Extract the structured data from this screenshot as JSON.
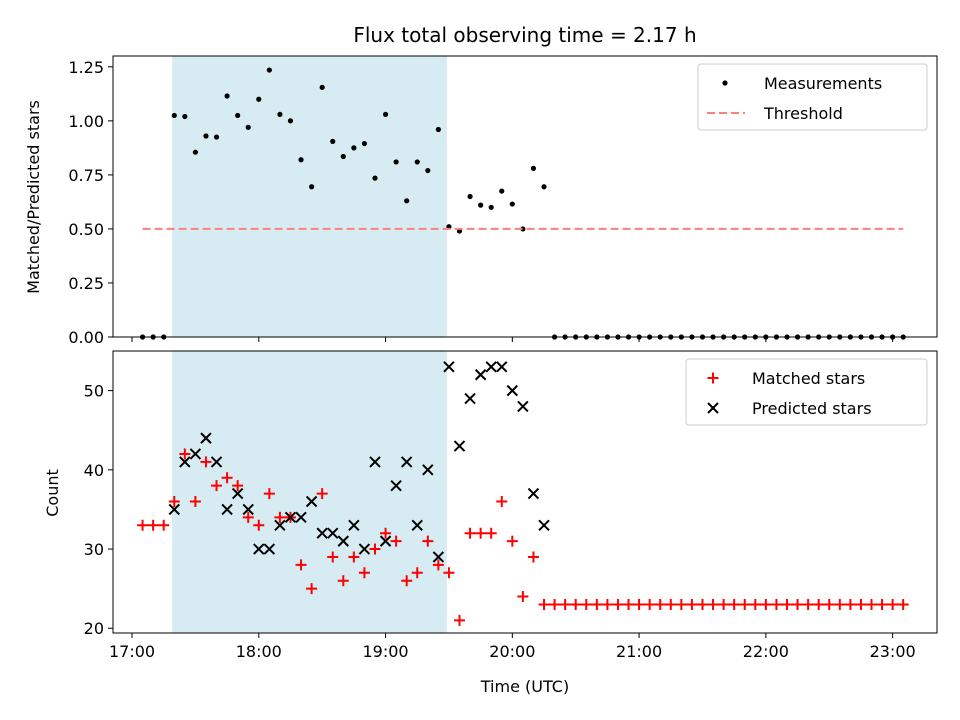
{
  "chart_data": [
    {
      "type": "scatter",
      "title": "Flux total observing time = 2.17 h",
      "xlabel": "",
      "ylabel": "Matched/Predicted stars",
      "xlim": [
        "16:51",
        "23:21"
      ],
      "ylim": [
        0,
        1.3
      ],
      "yticks": [
        "0.00",
        "0.25",
        "0.50",
        "0.75",
        "1.00",
        "1.25"
      ],
      "shaded_span": [
        "17:19",
        "19:29"
      ],
      "shade_color": "#add8e6",
      "legend_position": "top-right",
      "series": [
        {
          "name": "Measurements",
          "marker": "dot",
          "color": "#000000",
          "points": [
            [
              "17:05",
              0
            ],
            [
              "17:10",
              0
            ],
            [
              "17:15",
              0
            ],
            [
              "17:20",
              1.025
            ],
            [
              "17:25",
              1.02
            ],
            [
              "17:30",
              0.855
            ],
            [
              "17:35",
              0.93
            ],
            [
              "17:40",
              0.925
            ],
            [
              "17:45",
              1.115
            ],
            [
              "17:50",
              1.025
            ],
            [
              "17:55",
              0.97
            ],
            [
              "18:00",
              1.1
            ],
            [
              "18:05",
              1.235
            ],
            [
              "18:10",
              1.03
            ],
            [
              "18:15",
              1.0
            ],
            [
              "18:20",
              0.82
            ],
            [
              "18:25",
              0.695
            ],
            [
              "18:30",
              1.155
            ],
            [
              "18:35",
              0.905
            ],
            [
              "18:40",
              0.835
            ],
            [
              "18:45",
              0.875
            ],
            [
              "18:50",
              0.895
            ],
            [
              "18:55",
              0.735
            ],
            [
              "19:00",
              1.03
            ],
            [
              "19:05",
              0.81
            ],
            [
              "19:10",
              0.63
            ],
            [
              "19:15",
              0.81
            ],
            [
              "19:20",
              0.77
            ],
            [
              "19:25",
              0.96
            ],
            [
              "19:30",
              0.51
            ],
            [
              "19:35",
              0.49
            ],
            [
              "19:40",
              0.65
            ],
            [
              "19:45",
              0.61
            ],
            [
              "19:50",
              0.6
            ],
            [
              "19:55",
              0.675
            ],
            [
              "20:00",
              0.615
            ],
            [
              "20:05",
              0.5
            ],
            [
              "20:10",
              0.78
            ],
            [
              "20:15",
              0.695
            ],
            [
              "20:20",
              0
            ],
            [
              "20:25",
              0
            ],
            [
              "20:30",
              0
            ],
            [
              "20:35",
              0
            ],
            [
              "20:40",
              0
            ],
            [
              "20:45",
              0
            ],
            [
              "20:50",
              0
            ],
            [
              "20:55",
              0
            ],
            [
              "21:00",
              0
            ],
            [
              "21:05",
              0
            ],
            [
              "21:10",
              0
            ],
            [
              "21:15",
              0
            ],
            [
              "21:20",
              0
            ],
            [
              "21:25",
              0
            ],
            [
              "21:30",
              0
            ],
            [
              "21:35",
              0
            ],
            [
              "21:40",
              0
            ],
            [
              "21:45",
              0
            ],
            [
              "21:50",
              0
            ],
            [
              "21:55",
              0
            ],
            [
              "22:00",
              0
            ],
            [
              "22:05",
              0
            ],
            [
              "22:10",
              0
            ],
            [
              "22:15",
              0
            ],
            [
              "22:20",
              0
            ],
            [
              "22:25",
              0
            ],
            [
              "22:30",
              0
            ],
            [
              "22:35",
              0
            ],
            [
              "22:40",
              0
            ],
            [
              "22:45",
              0
            ],
            [
              "22:50",
              0
            ],
            [
              "22:55",
              0
            ],
            [
              "23:00",
              0
            ],
            [
              "23:05",
              0
            ]
          ]
        },
        {
          "name": "Threshold",
          "marker": "dashed-line",
          "color": "#ff7f7f",
          "points": [
            [
              "17:05",
              0.5
            ],
            [
              "23:05",
              0.5
            ]
          ]
        }
      ]
    },
    {
      "type": "scatter",
      "title": "",
      "xlabel": "Time (UTC)",
      "ylabel": "Count",
      "xlim": [
        "16:51",
        "23:21"
      ],
      "ylim": [
        19.4,
        55
      ],
      "yticks": [
        "20",
        "30",
        "40",
        "50"
      ],
      "xticks": [
        "17:00",
        "18:00",
        "19:00",
        "20:00",
        "21:00",
        "22:00",
        "23:00"
      ],
      "shaded_span": [
        "17:19",
        "19:29"
      ],
      "shade_color": "#add8e6",
      "legend_position": "top-right",
      "series": [
        {
          "name": "Matched stars",
          "marker": "plus",
          "color": "#ff0000",
          "points": [
            [
              "17:05",
              33
            ],
            [
              "17:10",
              33
            ],
            [
              "17:15",
              33
            ],
            [
              "17:20",
              36
            ],
            [
              "17:25",
              42
            ],
            [
              "17:30",
              36
            ],
            [
              "17:35",
              41
            ],
            [
              "17:40",
              38
            ],
            [
              "17:45",
              39
            ],
            [
              "17:50",
              38
            ],
            [
              "17:55",
              34
            ],
            [
              "18:00",
              33
            ],
            [
              "18:05",
              37
            ],
            [
              "18:10",
              34
            ],
            [
              "18:15",
              34
            ],
            [
              "18:20",
              28
            ],
            [
              "18:25",
              25
            ],
            [
              "18:30",
              37
            ],
            [
              "18:35",
              29
            ],
            [
              "18:40",
              26
            ],
            [
              "18:45",
              29
            ],
            [
              "18:50",
              27
            ],
            [
              "18:55",
              30
            ],
            [
              "19:00",
              32
            ],
            [
              "19:05",
              31
            ],
            [
              "19:10",
              26
            ],
            [
              "19:15",
              27
            ],
            [
              "19:20",
              31
            ],
            [
              "19:25",
              28
            ],
            [
              "19:30",
              27
            ],
            [
              "19:35",
              21
            ],
            [
              "19:40",
              32
            ],
            [
              "19:45",
              32
            ],
            [
              "19:50",
              32
            ],
            [
              "19:55",
              36
            ],
            [
              "20:00",
              31
            ],
            [
              "20:05",
              24
            ],
            [
              "20:10",
              29
            ],
            [
              "20:15",
              23
            ],
            [
              "20:20",
              23
            ],
            [
              "20:25",
              23
            ],
            [
              "20:30",
              23
            ],
            [
              "20:35",
              23
            ],
            [
              "20:40",
              23
            ],
            [
              "20:45",
              23
            ],
            [
              "20:50",
              23
            ],
            [
              "20:55",
              23
            ],
            [
              "21:00",
              23
            ],
            [
              "21:05",
              23
            ],
            [
              "21:10",
              23
            ],
            [
              "21:15",
              23
            ],
            [
              "21:20",
              23
            ],
            [
              "21:25",
              23
            ],
            [
              "21:30",
              23
            ],
            [
              "21:35",
              23
            ],
            [
              "21:40",
              23
            ],
            [
              "21:45",
              23
            ],
            [
              "21:50",
              23
            ],
            [
              "21:55",
              23
            ],
            [
              "22:00",
              23
            ],
            [
              "22:05",
              23
            ],
            [
              "22:10",
              23
            ],
            [
              "22:15",
              23
            ],
            [
              "22:20",
              23
            ],
            [
              "22:25",
              23
            ],
            [
              "22:30",
              23
            ],
            [
              "22:35",
              23
            ],
            [
              "22:40",
              23
            ],
            [
              "22:45",
              23
            ],
            [
              "22:50",
              23
            ],
            [
              "22:55",
              23
            ],
            [
              "23:00",
              23
            ],
            [
              "23:05",
              23
            ]
          ]
        },
        {
          "name": "Predicted stars",
          "marker": "x",
          "color": "#000000",
          "points": [
            [
              "17:20",
              35
            ],
            [
              "17:25",
              41
            ],
            [
              "17:30",
              42
            ],
            [
              "17:35",
              44
            ],
            [
              "17:40",
              41
            ],
            [
              "17:45",
              35
            ],
            [
              "17:50",
              37
            ],
            [
              "17:55",
              35
            ],
            [
              "18:00",
              30
            ],
            [
              "18:05",
              30
            ],
            [
              "18:10",
              33
            ],
            [
              "18:15",
              34
            ],
            [
              "18:20",
              34
            ],
            [
              "18:25",
              36
            ],
            [
              "18:30",
              32
            ],
            [
              "18:35",
              32
            ],
            [
              "18:40",
              31
            ],
            [
              "18:45",
              33
            ],
            [
              "18:50",
              30
            ],
            [
              "18:55",
              41
            ],
            [
              "19:00",
              31
            ],
            [
              "19:05",
              38
            ],
            [
              "19:10",
              41
            ],
            [
              "19:15",
              33
            ],
            [
              "19:20",
              40
            ],
            [
              "19:25",
              29
            ],
            [
              "19:30",
              53
            ],
            [
              "19:35",
              43
            ],
            [
              "19:40",
              49
            ],
            [
              "19:45",
              52
            ],
            [
              "19:50",
              53
            ],
            [
              "19:55",
              53
            ],
            [
              "20:00",
              50
            ],
            [
              "20:05",
              48
            ],
            [
              "20:10",
              37
            ],
            [
              "20:15",
              33
            ]
          ]
        }
      ]
    }
  ]
}
